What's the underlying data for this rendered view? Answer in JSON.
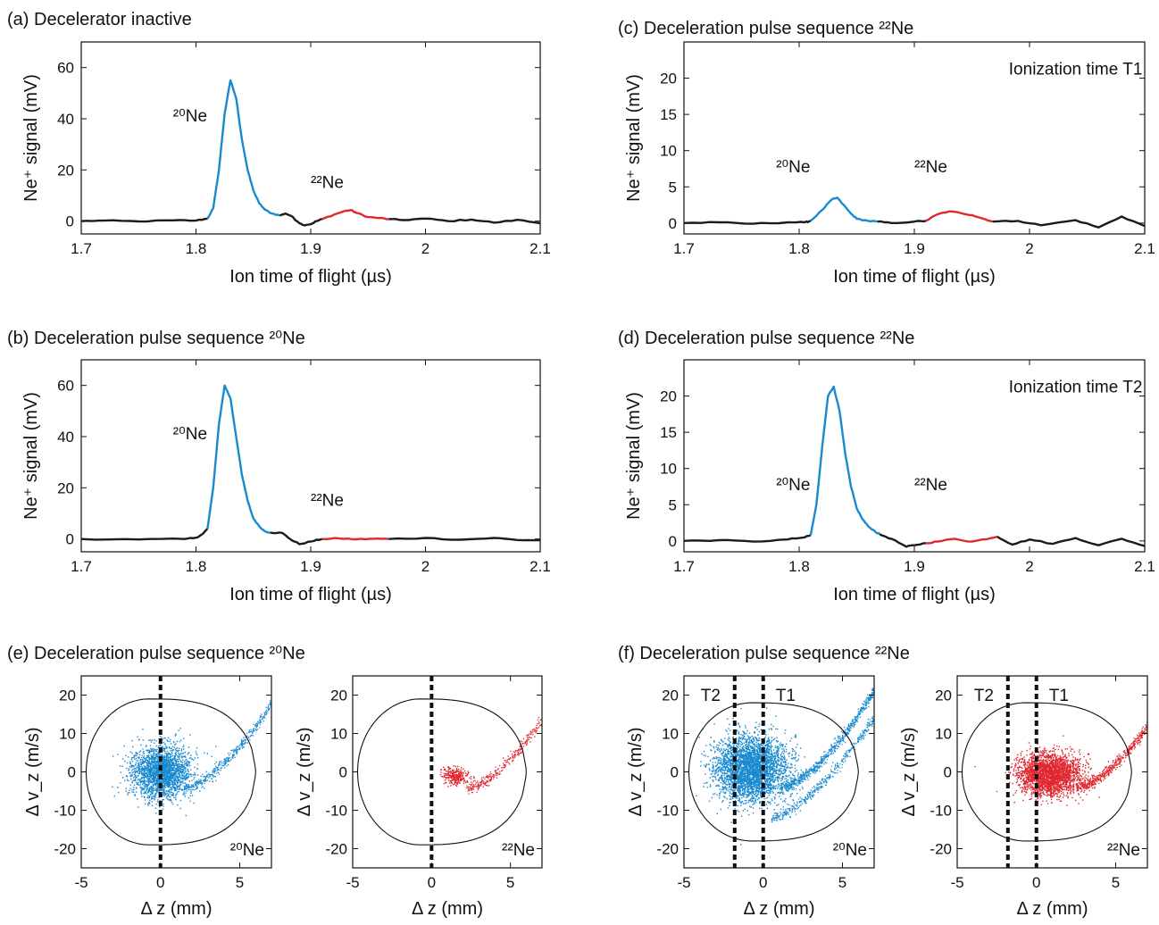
{
  "chart_data": [
    {
      "id": "a",
      "type": "line",
      "caption": "(a) Decelerator inactive",
      "xlabel": "Ion time of flight (µs)",
      "ylabel": "Ne⁺ signal (mV)",
      "xlim": [
        1.7,
        2.1
      ],
      "ylim": [
        -5,
        70
      ],
      "xticks": [
        "1.7",
        "1.8",
        "1.9",
        "2",
        "2.1"
      ],
      "yticks": [
        "0",
        "20",
        "40",
        "60"
      ],
      "annotations": [
        {
          "text": "²⁰Ne",
          "x": 1.78,
          "y": 39
        },
        {
          "text": "²²Ne",
          "x": 1.9,
          "y": 13
        }
      ],
      "series": [
        {
          "color": "#1b1b1b",
          "x": [
            1.7,
            1.72,
            1.75,
            1.78,
            1.8,
            1.81
          ],
          "y": [
            0,
            0.2,
            -0.1,
            0.3,
            0.2,
            1
          ]
        },
        {
          "color": "#1a8ad0",
          "x": [
            1.81,
            1.815,
            1.82,
            1.825,
            1.83,
            1.835,
            1.84,
            1.845,
            1.85,
            1.855,
            1.86,
            1.866,
            1.873
          ],
          "y": [
            1,
            5,
            20,
            42,
            55,
            48,
            32,
            20,
            12,
            7,
            4.5,
            3,
            2.2
          ]
        },
        {
          "color": "#1b1b1b",
          "x": [
            1.873,
            1.878,
            1.883,
            1.888,
            1.893,
            1.9,
            1.905,
            1.91
          ],
          "y": [
            2.2,
            3,
            2,
            0,
            -1.5,
            -1.2,
            0,
            0.8
          ]
        },
        {
          "color": "#e0262f",
          "x": [
            1.91,
            1.92,
            1.93,
            1.935,
            1.94,
            1.95,
            1.96,
            1.968
          ],
          "y": [
            0.8,
            2.5,
            4,
            4.3,
            3.2,
            1.6,
            1.2,
            0.8
          ]
        },
        {
          "color": "#1b1b1b",
          "x": [
            1.968,
            1.98,
            2.0,
            2.02,
            2.04,
            2.06,
            2.08,
            2.1
          ],
          "y": [
            0.8,
            0.4,
            1,
            0,
            0.6,
            -0.6,
            0.5,
            -0.8
          ]
        }
      ]
    },
    {
      "id": "b",
      "type": "line",
      "caption": "(b) Deceleration pulse sequence ²⁰Ne",
      "xlabel": "Ion time of flight (µs)",
      "ylabel": "Ne⁺ signal (mV)",
      "xlim": [
        1.7,
        2.1
      ],
      "ylim": [
        -5,
        70
      ],
      "xticks": [
        "1.7",
        "1.8",
        "1.9",
        "2",
        "2.1"
      ],
      "yticks": [
        "0",
        "20",
        "40",
        "60"
      ],
      "annotations": [
        {
          "text": "²⁰Ne",
          "x": 1.78,
          "y": 39
        },
        {
          "text": "²²Ne",
          "x": 1.9,
          "y": 13
        }
      ],
      "series": [
        {
          "color": "#1b1b1b",
          "x": [
            1.7,
            1.75,
            1.79,
            1.8,
            1.806,
            1.81
          ],
          "y": [
            0,
            -0.2,
            0,
            0.5,
            2,
            4
          ]
        },
        {
          "color": "#1a8ad0",
          "x": [
            1.81,
            1.815,
            1.82,
            1.825,
            1.83,
            1.835,
            1.84,
            1.845,
            1.85,
            1.855,
            1.86,
            1.865
          ],
          "y": [
            4,
            20,
            45,
            60,
            55,
            40,
            25,
            15,
            8,
            5,
            3,
            2.5
          ]
        },
        {
          "color": "#1b1b1b",
          "x": [
            1.865,
            1.875,
            1.882,
            1.89,
            1.9,
            1.91
          ],
          "y": [
            2.5,
            2.4,
            0,
            -2,
            -1,
            0
          ]
        },
        {
          "color": "#e0262f",
          "x": [
            1.91,
            1.925,
            1.94,
            1.955,
            1.968
          ],
          "y": [
            0,
            0.2,
            -0.1,
            0.1,
            0
          ]
        },
        {
          "color": "#1b1b1b",
          "x": [
            1.968,
            2.0,
            2.03,
            2.06,
            2.08,
            2.1
          ],
          "y": [
            0,
            0.4,
            -0.3,
            0.4,
            -0.4,
            -0.5
          ]
        }
      ]
    },
    {
      "id": "c",
      "type": "line",
      "caption": "(c) Deceleration pulse sequence ²²Ne",
      "xlabel": "Ion time of flight (µs)",
      "ylabel": "Ne⁺ signal (mV)",
      "xlim": [
        1.7,
        2.1
      ],
      "ylim": [
        -1.5,
        25
      ],
      "xticks": [
        "1.7",
        "1.8",
        "1.9",
        "2",
        "2.1"
      ],
      "yticks": [
        "0",
        "5",
        "10",
        "15",
        "20"
      ],
      "annotations": [
        {
          "text": "Ionization time T1",
          "x": 2.04,
          "y": 20.5
        },
        {
          "text": "²⁰Ne",
          "x": 1.78,
          "y": 7
        },
        {
          "text": "²²Ne",
          "x": 1.9,
          "y": 7
        }
      ],
      "series": [
        {
          "color": "#1b1b1b",
          "x": [
            1.7,
            1.73,
            1.76,
            1.79,
            1.805,
            1.81
          ],
          "y": [
            0,
            0.1,
            -0.1,
            0.1,
            0.1,
            0.3
          ]
        },
        {
          "color": "#1a8ad0",
          "x": [
            1.81,
            1.82,
            1.828,
            1.833,
            1.838,
            1.845,
            1.85,
            1.86,
            1.868
          ],
          "y": [
            0.3,
            1.8,
            3.2,
            3.5,
            2.6,
            1.3,
            0.6,
            0.3,
            0.2
          ]
        },
        {
          "color": "#1b1b1b",
          "x": [
            1.868,
            1.88,
            1.9,
            1.91
          ],
          "y": [
            0.2,
            0,
            0.2,
            0.3
          ]
        },
        {
          "color": "#e0262f",
          "x": [
            1.91,
            1.92,
            1.93,
            1.94,
            1.95,
            1.96,
            1.968
          ],
          "y": [
            0.3,
            1.2,
            1.6,
            1.4,
            1.1,
            0.6,
            0.2
          ]
        },
        {
          "color": "#1b1b1b",
          "x": [
            1.968,
            1.99,
            2.01,
            2.04,
            2.06,
            2.08,
            2.1
          ],
          "y": [
            0.2,
            0.3,
            -0.3,
            0.4,
            -0.6,
            0.9,
            -0.4
          ]
        }
      ]
    },
    {
      "id": "d",
      "type": "line",
      "caption": "(d) Deceleration pulse sequence ²²Ne",
      "xlabel": "Ion time of flight (µs)",
      "ylabel": "Ne⁺ signal (mV)",
      "xlim": [
        1.7,
        2.1
      ],
      "ylim": [
        -1.5,
        25
      ],
      "xticks": [
        "1.7",
        "1.8",
        "1.9",
        "2",
        "2.1"
      ],
      "yticks": [
        "0",
        "5",
        "10",
        "15",
        "20"
      ],
      "annotations": [
        {
          "text": "Ionization time T2",
          "x": 2.04,
          "y": 20.5
        },
        {
          "text": "²⁰Ne",
          "x": 1.78,
          "y": 7
        },
        {
          "text": "²²Ne",
          "x": 1.9,
          "y": 7
        }
      ],
      "series": [
        {
          "color": "#1b1b1b",
          "x": [
            1.7,
            1.73,
            1.76,
            1.79,
            1.805,
            1.81
          ],
          "y": [
            0,
            0.1,
            -0.1,
            0.2,
            0.5,
            0.8
          ]
        },
        {
          "color": "#1a8ad0",
          "x": [
            1.81,
            1.815,
            1.82,
            1.825,
            1.83,
            1.835,
            1.84,
            1.845,
            1.85,
            1.855,
            1.86,
            1.866,
            1.87
          ],
          "y": [
            0.8,
            5,
            13,
            20,
            21.3,
            18,
            12,
            7.5,
            4.5,
            3,
            2,
            1.3,
            0.9
          ]
        },
        {
          "color": "#1b1b1b",
          "x": [
            1.87,
            1.88,
            1.893,
            1.9,
            1.91
          ],
          "y": [
            0.9,
            0.3,
            -0.8,
            -0.6,
            -0.3
          ]
        },
        {
          "color": "#e0262f",
          "x": [
            1.91,
            1.92,
            1.935,
            1.95,
            1.96,
            1.972
          ],
          "y": [
            -0.3,
            -0.1,
            0.3,
            -0.1,
            0.2,
            0.6
          ]
        },
        {
          "color": "#1b1b1b",
          "x": [
            1.972,
            1.985,
            2.0,
            2.02,
            2.04,
            2.06,
            2.08,
            2.1
          ],
          "y": [
            0.6,
            -0.5,
            0.2,
            -0.4,
            0.4,
            -0.6,
            0.3,
            -0.7
          ]
        }
      ]
    },
    {
      "id": "e",
      "type": "scatter",
      "caption": "(e) Deceleration pulse sequence ²⁰Ne",
      "subplots": [
        {
          "xlabel": "Δ z (mm)",
          "ylabel": "Δ v_z (m/s)",
          "xlim": [
            -5,
            7
          ],
          "ylim": [
            -25,
            25
          ],
          "xticks": [
            "-5",
            "0",
            "5"
          ],
          "yticks": [
            "-20",
            "-10",
            "0",
            "10",
            "20"
          ],
          "color": "#1a8ad0",
          "label": "²⁰Ne",
          "dashed_lines": [
            {
              "x": 0,
              "label": ""
            }
          ],
          "cloud": {
            "cx": 0,
            "cy": 0,
            "sx": 1.3,
            "sy": 4.5,
            "n": 2200
          },
          "arms": [
            {
              "x_from": 1.5,
              "x_to": 7,
              "n": 400
            }
          ],
          "separatrix": {
            "a": 3.8,
            "b": 19,
            "tip": 6
          }
        },
        {
          "xlabel": "Δ z (mm)",
          "ylabel": "Δ v_z (m/s)",
          "xlim": [
            -5,
            7
          ],
          "ylim": [
            -25,
            25
          ],
          "xticks": [
            "-5",
            "0",
            "5"
          ],
          "yticks": [
            "-20",
            "-10",
            "0",
            "10",
            "20"
          ],
          "color": "#e0262f",
          "label": "²²Ne",
          "dashed_lines": [
            {
              "x": 0,
              "label": ""
            }
          ],
          "cloud": {
            "cx": 1.5,
            "cy": -1,
            "sx": 0.6,
            "sy": 1.5,
            "n": 250
          },
          "arms": [
            {
              "x_from": 2.2,
              "x_to": 7,
              "n": 300
            }
          ],
          "separatrix": {
            "a": 3.8,
            "b": 19,
            "tip": 6
          }
        }
      ]
    },
    {
      "id": "f",
      "type": "scatter",
      "caption": "(f) Deceleration pulse sequence ²²Ne",
      "subplots": [
        {
          "xlabel": "Δ z (mm)",
          "ylabel": "Δ v_z (m/s)",
          "xlim": [
            -5,
            7
          ],
          "ylim": [
            -25,
            25
          ],
          "xticks": [
            "-5",
            "0",
            "5"
          ],
          "yticks": [
            "-20",
            "-10",
            "0",
            "10",
            "20"
          ],
          "color": "#1a8ad0",
          "label": "²⁰Ne",
          "dashed_lines": [
            {
              "x": -1.8,
              "label": "T2"
            },
            {
              "x": 0,
              "label": "T1"
            }
          ],
          "cloud": {
            "cx": -0.8,
            "cy": 1,
            "sx": 1.6,
            "sy": 5.5,
            "n": 3500
          },
          "arms": [
            {
              "x_from": 1.0,
              "x_to": 7,
              "n": 700
            },
            {
              "x_from": 0.5,
              "x_to": 7,
              "n": 400,
              "lower": true
            }
          ],
          "separatrix": {
            "a": 3.8,
            "b": 18,
            "tip": 6
          }
        },
        {
          "xlabel": "Δ z (mm)",
          "ylabel": "Δ v_z (m/s)",
          "xlim": [
            -5,
            7
          ],
          "ylim": [
            -25,
            25
          ],
          "xticks": [
            "-5",
            "0",
            "5"
          ],
          "yticks": [
            "-20",
            "-10",
            "0",
            "10",
            "20"
          ],
          "color": "#e0262f",
          "label": "²²Ne",
          "dashed_lines": [
            {
              "x": -1.8,
              "label": "T2"
            },
            {
              "x": 0,
              "label": "T1"
            }
          ],
          "cloud": {
            "cx": 0.8,
            "cy": -0.5,
            "sx": 1.4,
            "sy": 3.5,
            "n": 2600
          },
          "arms": [
            {
              "x_from": 2.5,
              "x_to": 7,
              "n": 500
            }
          ],
          "separatrix": {
            "a": 3.8,
            "b": 18,
            "tip": 6
          }
        }
      ]
    }
  ]
}
